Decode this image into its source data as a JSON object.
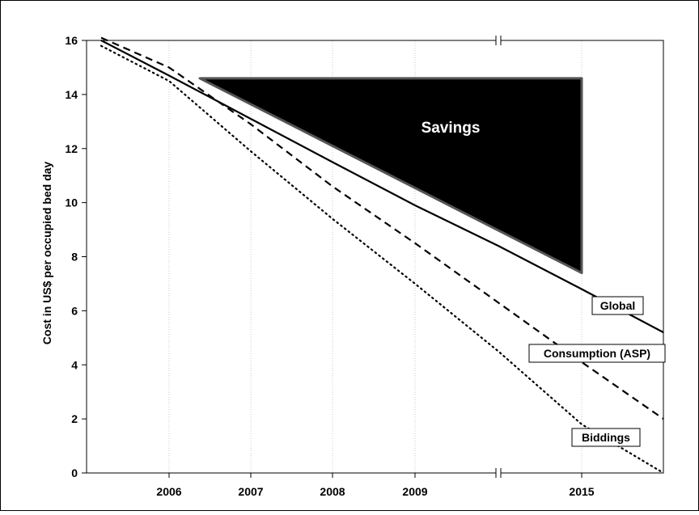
{
  "chart_data": {
    "type": "line",
    "title": "",
    "xlabel": "",
    "ylabel": "Cost in US$ per occupied bed day",
    "x_tick_labels": [
      "2006",
      "2007",
      "2008",
      "2009",
      "2015"
    ],
    "x_axis_break": "between 2009 and 2015",
    "ylim": [
      0,
      16
    ],
    "y_ticks": [
      0,
      2,
      4,
      6,
      8,
      10,
      12,
      14,
      16
    ],
    "y_tick_labels": [
      "0",
      "2",
      "4",
      "6",
      "8",
      "10",
      "12",
      "14",
      "16"
    ],
    "grid": "vertical dotted lines at x ticks",
    "series": [
      {
        "name": "Global",
        "style": "solid",
        "color": "#000000",
        "points": [
          {
            "x": "start",
            "y": 16.0
          },
          {
            "x": "2006",
            "y": 14.7
          },
          {
            "x": "2007",
            "y": 13.1
          },
          {
            "x": "2008",
            "y": 11.5
          },
          {
            "x": "2009",
            "y": 9.9
          },
          {
            "x": "break",
            "y": 8.4
          },
          {
            "x": "2015",
            "y": 6.8
          },
          {
            "x": "end",
            "y": 5.2
          }
        ]
      },
      {
        "name": "Consumption (ASP)",
        "style": "dashed",
        "color": "#000000",
        "points": [
          {
            "x": "start",
            "y": 16.1
          },
          {
            "x": "2006",
            "y": 15.0
          },
          {
            "x": "2007",
            "y": 12.9
          },
          {
            "x": "2008",
            "y": 10.6
          },
          {
            "x": "2009",
            "y": 8.5
          },
          {
            "x": "break",
            "y": 6.3
          },
          {
            "x": "2015",
            "y": 4.1
          },
          {
            "x": "end",
            "y": 2.0
          }
        ]
      },
      {
        "name": "Biddings",
        "style": "dotted",
        "color": "#000000",
        "points": [
          {
            "x": "start",
            "y": 15.8
          },
          {
            "x": "2006",
            "y": 14.5
          },
          {
            "x": "2007",
            "y": 11.9
          },
          {
            "x": "2008",
            "y": 9.4
          },
          {
            "x": "2009",
            "y": 7.0
          },
          {
            "x": "break",
            "y": 4.5
          },
          {
            "x": "2015",
            "y": 1.8
          },
          {
            "x": "end",
            "y": 0.0
          }
        ]
      }
    ],
    "savings_area": {
      "label": "Savings",
      "fill": "#000000",
      "top_y": 14.6,
      "bottom_y": 7.4,
      "from_x": "between 2006 and 2007",
      "to_x": "2015"
    },
    "series_labels": [
      "Global",
      "Consumption (ASP)",
      "Biddings"
    ]
  }
}
